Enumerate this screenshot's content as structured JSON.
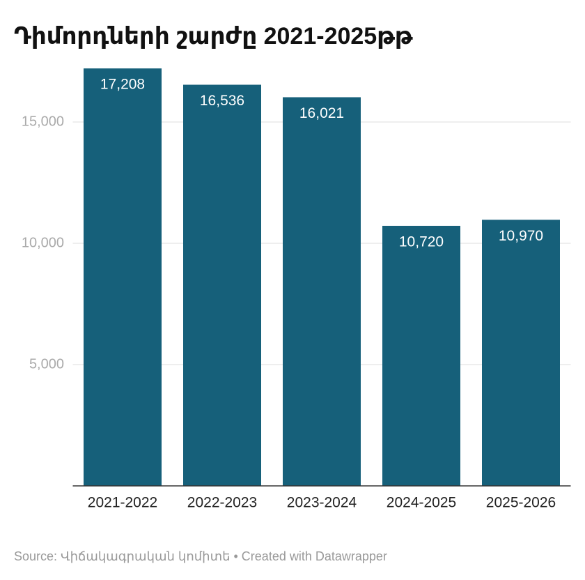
{
  "chart_data": {
    "type": "bar",
    "title": "Դիմորդների շարժը 2021-2025թթ",
    "categories": [
      "2021-2022",
      "2022-2023",
      "2023-2024",
      "2024-2025",
      "2025-2026"
    ],
    "values": [
      17208,
      16536,
      16021,
      10720,
      10970
    ],
    "value_labels": [
      "17,208",
      "16,536",
      "16,021",
      "10,720",
      "10,970"
    ],
    "color": "#16607a",
    "ylim": [
      0,
      17500
    ],
    "yticks": [
      {
        "value": 5000,
        "label": "5,000"
      },
      {
        "value": 10000,
        "label": "10,000"
      },
      {
        "value": 15000,
        "label": "15,000"
      }
    ],
    "grid": true,
    "footer": "Source: Վիճակագրական կոմիտե • Created with Datawrapper"
  }
}
